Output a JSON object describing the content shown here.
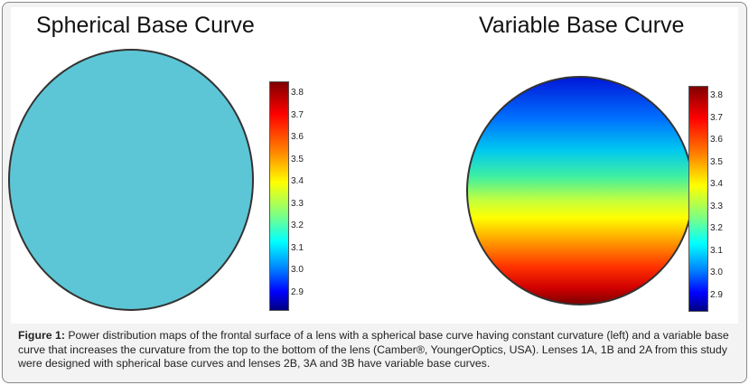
{
  "left_panel": {
    "title": "Spherical Base Curve",
    "fill": "#5cc6d6",
    "colorbar_ticks": [
      "3.8",
      "3.7",
      "3.6",
      "3.5",
      "3.4",
      "3.3",
      "3.2",
      "3.1",
      "3.0",
      "2.9"
    ]
  },
  "right_panel": {
    "title": "Variable Base Curve",
    "colorbar_ticks": [
      "3.8",
      "3.7",
      "3.6",
      "3.5",
      "3.4",
      "3.3",
      "3.2",
      "3.1",
      "3.0",
      "2.9"
    ]
  },
  "caption": {
    "label": "Figure 1:",
    "text": " Power distribution maps of the frontal surface of a lens with a spherical base curve having constant curvature (left) and a variable base curve that increases the curvature from the top to the bottom of the lens (Camber®, YoungerOptics, USA). Lenses 1A, 1B and 2A from this study were designed with spherical base curves and lenses 2B, 3A and 3B have variable base curves."
  }
}
